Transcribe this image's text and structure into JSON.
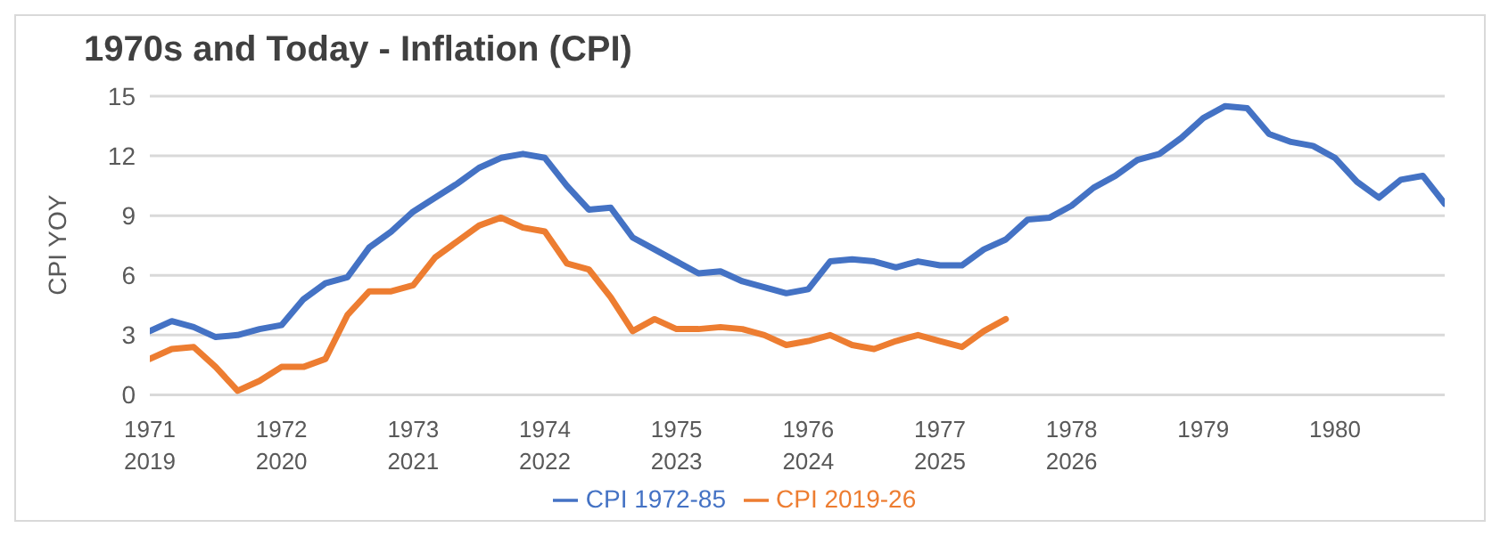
{
  "chart_data": {
    "type": "line",
    "title": "1970s and Today - Inflation (CPI)",
    "ylabel": "CPI YOY",
    "categories": [
      "1971\n2019",
      null,
      null,
      null,
      null,
      null,
      "1972\n2020",
      null,
      null,
      null,
      null,
      null,
      "1973\n2021",
      null,
      null,
      null,
      null,
      null,
      "1974\n2022",
      null,
      null,
      null,
      null,
      null,
      "1975\n2023",
      null,
      null,
      null,
      null,
      null,
      "1976\n2024",
      null,
      null,
      null,
      null,
      null,
      "1977\n2025",
      null,
      null,
      null,
      null,
      null,
      "1978\n2026",
      null,
      null,
      null,
      null,
      null,
      "1979",
      null,
      null,
      null,
      null,
      null,
      "1980",
      null,
      null,
      null,
      null,
      null
    ],
    "series": [
      {
        "name": "CPI 1972-85",
        "color": "#4472c4",
        "values": [
          3.2,
          3.7,
          3.4,
          2.9,
          3.0,
          3.3,
          3.5,
          4.8,
          5.6,
          5.9,
          7.4,
          8.2,
          9.2,
          9.9,
          10.6,
          11.4,
          11.9,
          12.1,
          11.9,
          10.5,
          9.3,
          9.4,
          7.9,
          7.3,
          6.7,
          6.1,
          6.2,
          5.7,
          5.4,
          5.1,
          5.3,
          6.7,
          6.8,
          6.7,
          6.4,
          6.7,
          6.5,
          6.5,
          7.3,
          7.8,
          8.8,
          8.9,
          9.5,
          10.4,
          11.0,
          11.8,
          12.1,
          12.9,
          13.9,
          14.5,
          14.4,
          13.1,
          12.7,
          12.5,
          11.9,
          10.7,
          9.9,
          10.8,
          11.0,
          9.6
        ]
      },
      {
        "name": "CPI 2019-26",
        "color": "#ed7d31",
        "values": [
          1.8,
          2.3,
          2.4,
          1.4,
          0.2,
          0.7,
          1.4,
          1.4,
          1.8,
          4.0,
          5.2,
          5.2,
          5.5,
          6.9,
          7.7,
          8.5,
          8.9,
          8.4,
          8.2,
          6.6,
          6.3,
          4.9,
          3.2,
          3.8,
          3.3,
          3.3,
          3.4,
          3.3,
          3.0,
          2.5,
          2.7,
          3.0,
          2.5,
          2.3,
          2.7,
          3.0,
          2.7,
          2.4,
          3.2,
          3.8,
          null,
          null,
          null,
          null,
          null,
          null,
          null,
          null,
          null,
          null,
          null,
          null,
          null,
          null,
          null,
          null,
          null,
          null,
          null,
          null
        ]
      }
    ],
    "ylim": [
      0,
      15
    ],
    "yticks": [
      0,
      3,
      6,
      9,
      12,
      15
    ],
    "grid": "y",
    "legend": "bottom",
    "marker": "none",
    "line_style": "solid"
  }
}
